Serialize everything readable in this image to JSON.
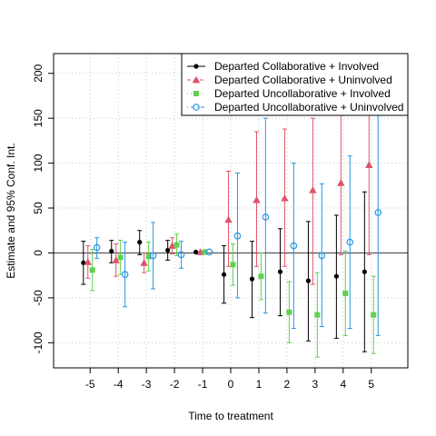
{
  "chart_data": {
    "type": "scatter",
    "title": "",
    "xlabel": "Time to treatment",
    "ylabel": "Estimate and 95% Conf. Int.",
    "xlim": [
      -6.3,
      6.3
    ],
    "ylim": [
      -128,
      222
    ],
    "x_ticks": [
      -5,
      -4,
      -3,
      -2,
      -1,
      0,
      1,
      2,
      3,
      4,
      5
    ],
    "y_ticks": [
      -100,
      -50,
      0,
      50,
      100,
      150,
      200
    ],
    "grid": true,
    "reference_line": 0,
    "legend_position": "top-right",
    "series": [
      {
        "name": "Departed Collaborative + Involved",
        "marker": "filled-circle",
        "line_style": "solid",
        "color": "#000000",
        "x": [
          -5,
          -4,
          -3,
          -2,
          -1,
          0,
          1,
          2,
          3,
          4,
          5
        ],
        "offset": -0.24,
        "y": [
          -11,
          2,
          12,
          3,
          1,
          -24,
          -29,
          -21,
          -31,
          -26,
          -21
        ],
        "lower": [
          -35,
          -11,
          -2,
          -8,
          1,
          -56,
          -72,
          -70,
          -98,
          -95,
          -110
        ],
        "upper": [
          13,
          14,
          25,
          14,
          1,
          8,
          13,
          27,
          35,
          42,
          68
        ]
      },
      {
        "name": "Departed Collaborative + Uninvolved",
        "marker": "filled-triangle",
        "line_style": "dashed",
        "color": "#DF536B",
        "x": [
          -5,
          -4,
          -3,
          -2,
          -1,
          0,
          1,
          2,
          3,
          4,
          5
        ],
        "offset": -0.08,
        "y": [
          -10,
          -8,
          -11,
          8,
          1,
          37,
          59,
          61,
          70,
          78,
          98
        ],
        "lower": [
          -28,
          -26,
          -22,
          -1,
          1,
          -15,
          -15,
          -15,
          -35,
          -2,
          -2
        ],
        "upper": [
          8,
          10,
          0,
          17,
          1,
          91,
          135,
          138,
          150,
          158,
          198
        ]
      },
      {
        "name": "Departed Uncollaborative + Involved",
        "marker": "filled-square",
        "line_style": "dotted",
        "color": "#61D04F",
        "x": [
          -5,
          -4,
          -3,
          -2,
          -1,
          0,
          1,
          2,
          3,
          4,
          5
        ],
        "offset": 0.08,
        "y": [
          -19,
          -5,
          -4,
          9,
          1,
          -13,
          -26,
          -66,
          -69,
          -45,
          -69
        ],
        "lower": [
          -42,
          -24,
          -20,
          -3,
          1,
          -36,
          -52,
          -100,
          -116,
          -92,
          -112
        ],
        "upper": [
          4,
          14,
          12,
          21,
          1,
          10,
          0,
          -32,
          -22,
          2,
          -26
        ]
      },
      {
        "name": "Departed Uncollaborative + Uninvolved",
        "marker": "open-circle",
        "line_style": "dashdot",
        "color": "#2297E6",
        "x": [
          -5,
          -4,
          -3,
          -2,
          -1,
          0,
          1,
          2,
          3,
          4,
          5
        ],
        "offset": 0.24,
        "y": [
          6,
          -24,
          -3,
          -2,
          1,
          19,
          40,
          8,
          -3,
          12,
          45
        ],
        "lower": [
          -6,
          -60,
          -40,
          -17,
          1,
          -50,
          -67,
          -84,
          -82,
          -84,
          -92
        ],
        "upper": [
          17,
          12,
          34,
          13,
          1,
          89,
          150,
          100,
          77,
          108,
          180
        ]
      }
    ]
  }
}
